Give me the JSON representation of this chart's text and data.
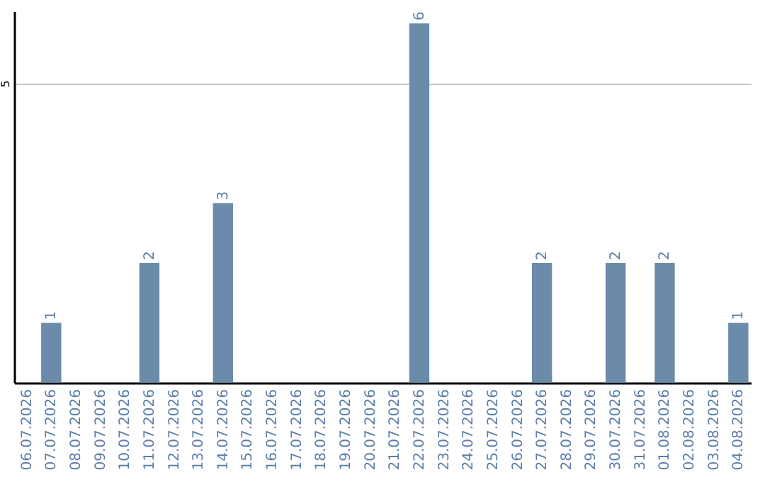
{
  "chart_data": {
    "type": "bar",
    "categories": [
      "06.07.2026",
      "07.07.2026",
      "08.07.2026",
      "09.07.2026",
      "10.07.2026",
      "11.07.2026",
      "12.07.2026",
      "13.07.2026",
      "14.07.2026",
      "15.07.2026",
      "16.07.2026",
      "17.07.2026",
      "18.07.2026",
      "19.07.2026",
      "20.07.2026",
      "21.07.2026",
      "22.07.2026",
      "23.07.2026",
      "24.07.2026",
      "25.07.2026",
      "26.07.2026",
      "27.07.2026",
      "28.07.2026",
      "29.07.2026",
      "30.07.2026",
      "31.07.2026",
      "01.08.2026",
      "02.08.2026",
      "03.08.2026",
      "04.08.2026"
    ],
    "values": [
      null,
      1,
      null,
      null,
      null,
      2,
      null,
      null,
      3,
      null,
      null,
      null,
      null,
      null,
      null,
      null,
      6,
      null,
      null,
      null,
      null,
      2,
      null,
      null,
      2,
      null,
      2,
      null,
      null,
      1
    ],
    "color": "#6a8caa",
    "ylim": [
      0,
      6.2
    ],
    "yticks": [
      5
    ],
    "grid": "y",
    "data_labels": true
  }
}
